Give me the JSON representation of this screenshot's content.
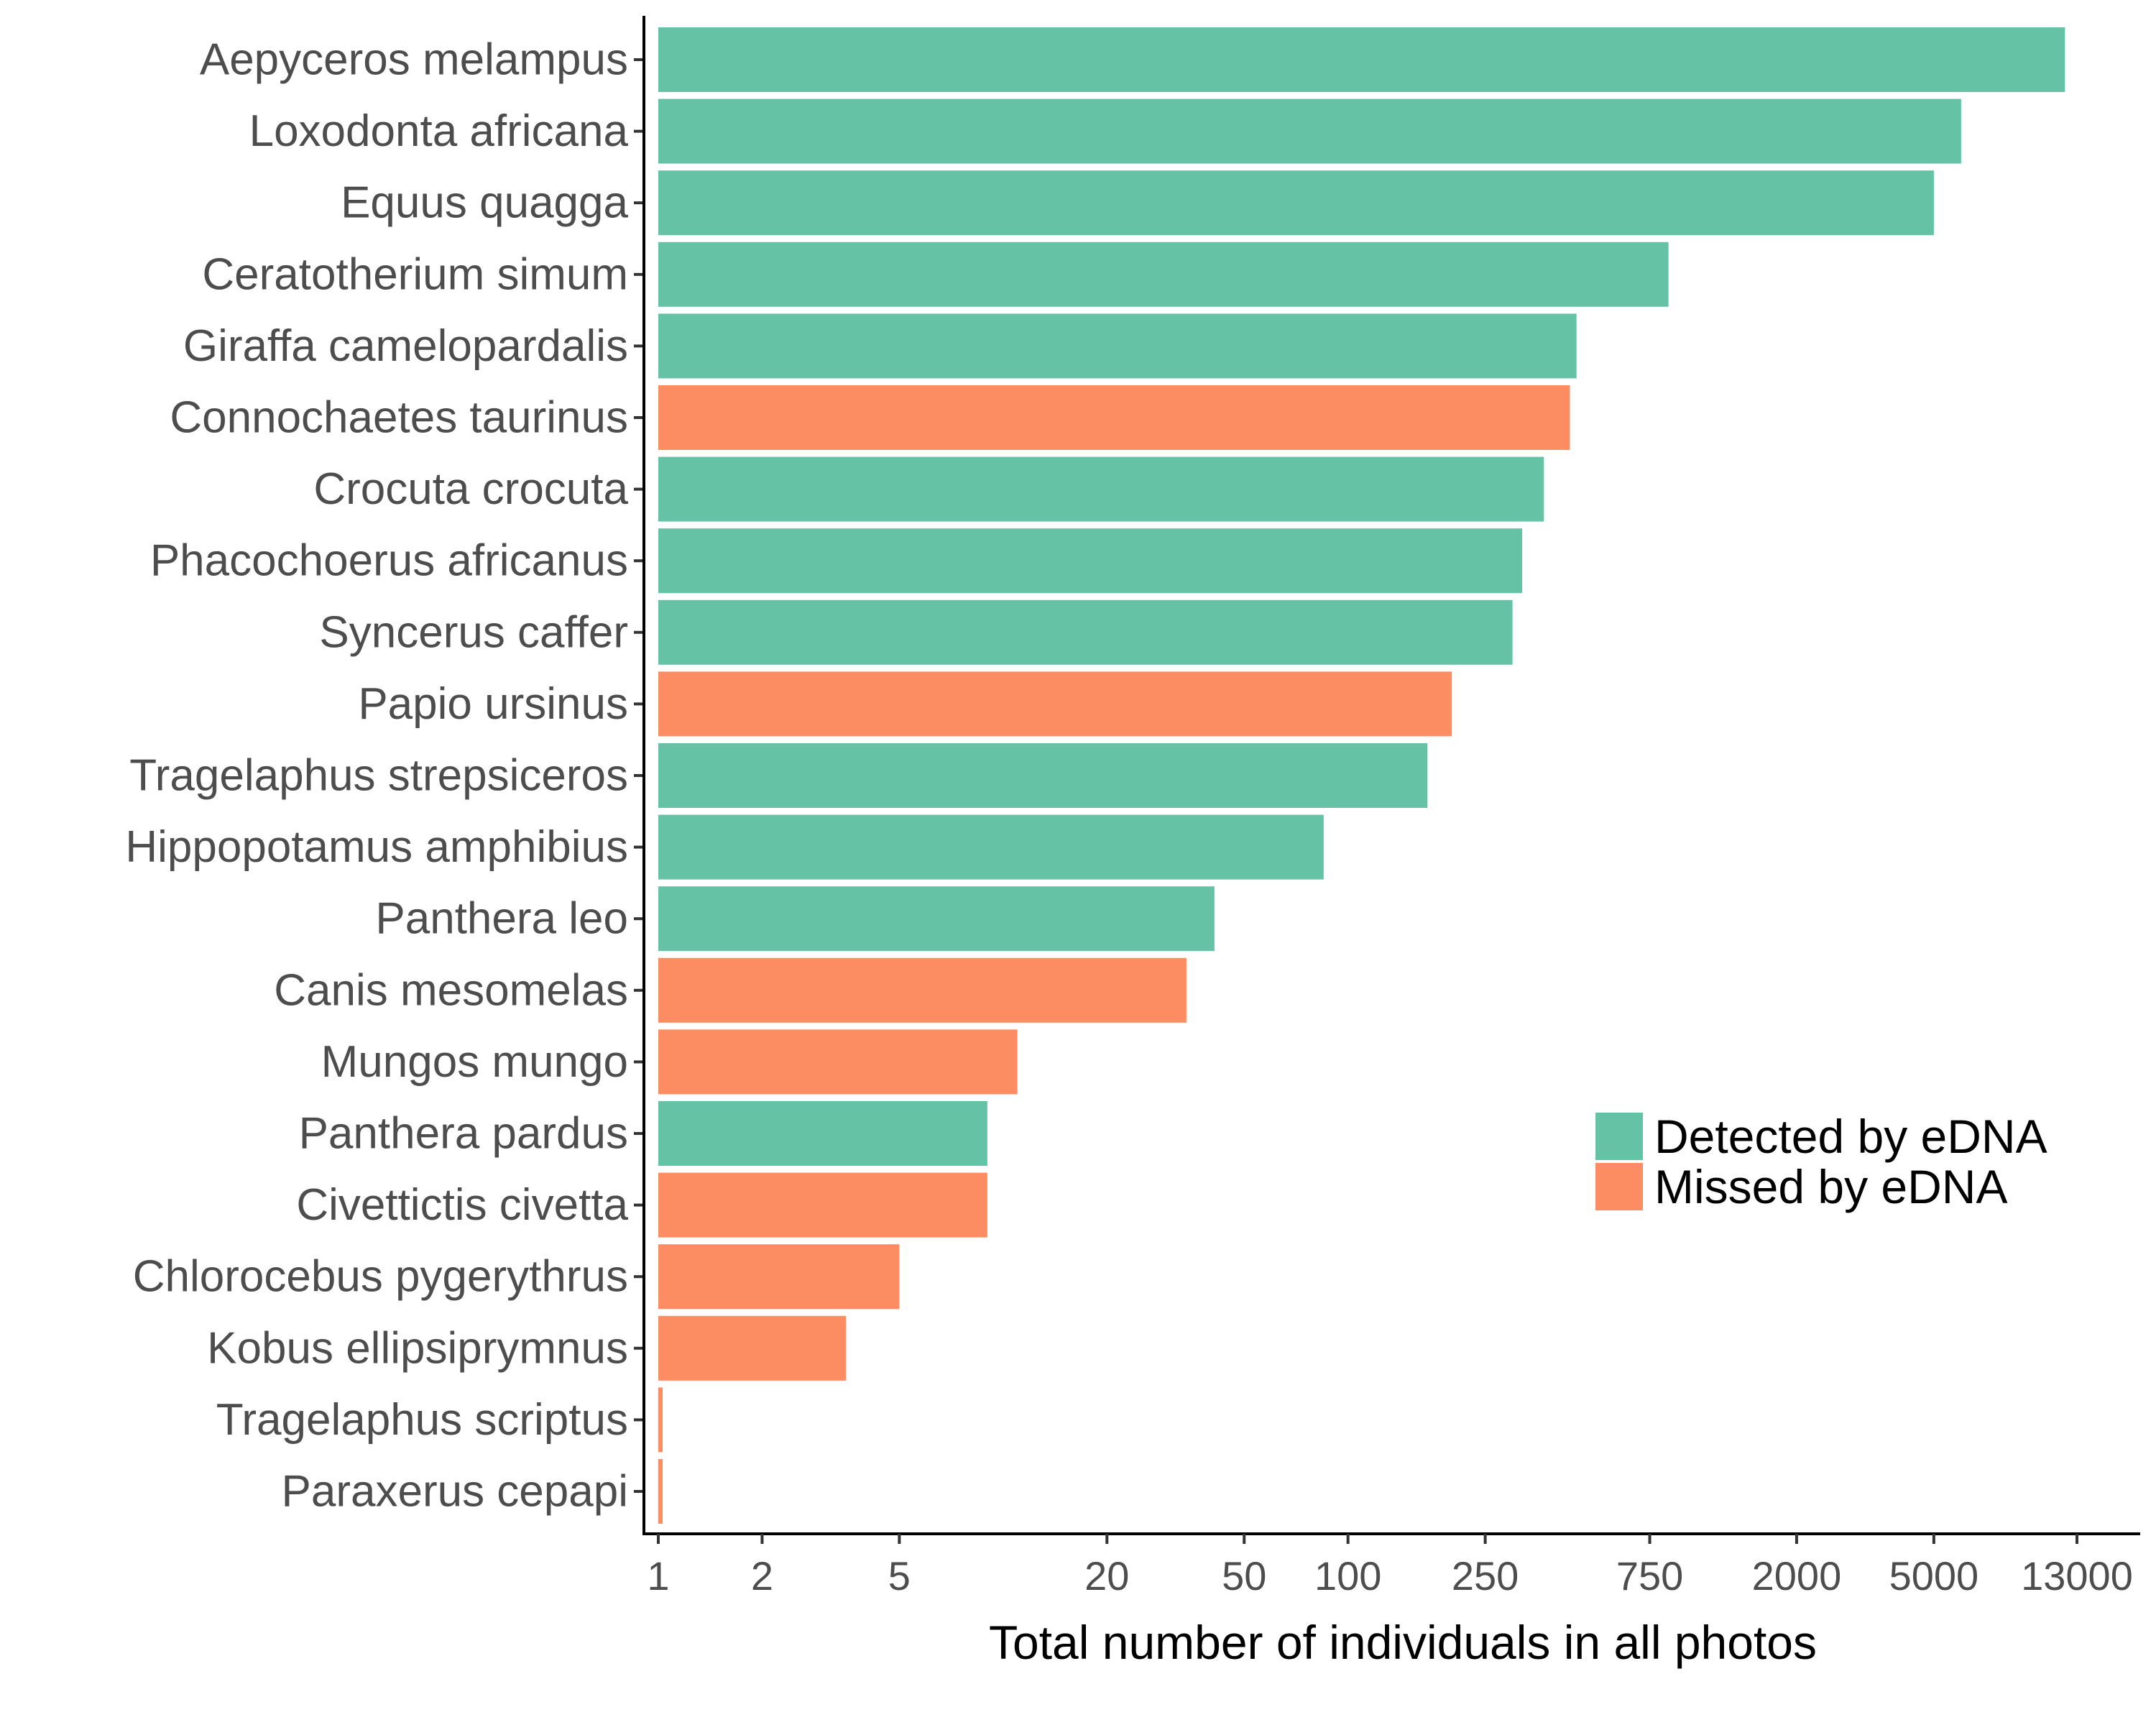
{
  "chart_data": {
    "type": "bar",
    "orientation": "horizontal",
    "categories": [
      "Aepyceros melampus",
      "Loxodonta africana",
      "Equus quagga",
      "Ceratotherium simum",
      "Giraffa camelopardalis",
      "Connochaetes taurinus",
      "Crocuta crocuta",
      "Phacochoerus africanus",
      "Syncerus caffer",
      "Papio ursinus",
      "Tragelaphus strepsiceros",
      "Hippopotamus amphibius",
      "Panthera leo",
      "Canis mesomelas",
      "Mungos mungo",
      "Panthera pardus",
      "Civettictis civetta",
      "Chlorocebus pygerythrus",
      "Kobus ellipsiprymnus",
      "Tragelaphus scriptus",
      "Paraxerus cepapi"
    ],
    "values": [
      12000,
      6000,
      5000,
      850,
      460,
      440,
      370,
      320,
      300,
      200,
      170,
      85,
      41,
      34,
      11,
      9,
      9,
      5,
      3.5,
      1,
      1
    ],
    "groups": [
      "Detected by eDNA",
      "Detected by eDNA",
      "Detected by eDNA",
      "Detected by eDNA",
      "Detected by eDNA",
      "Missed by eDNA",
      "Detected by eDNA",
      "Detected by eDNA",
      "Detected by eDNA",
      "Missed by eDNA",
      "Detected by eDNA",
      "Detected by eDNA",
      "Detected by eDNA",
      "Missed by eDNA",
      "Missed by eDNA",
      "Detected by eDNA",
      "Missed by eDNA",
      "Missed by eDNA",
      "Missed by eDNA",
      "Missed by eDNA",
      "Missed by eDNA"
    ],
    "legend": [
      {
        "name": "Detected by eDNA",
        "color": "#66c2a5"
      },
      {
        "name": "Missed by eDNA",
        "color": "#fc8d62"
      }
    ],
    "legend_position": "right-center",
    "xlabel": "Total number of individuals in all photos",
    "ylabel": "",
    "xscale": "log",
    "xticks": [
      1,
      2,
      5,
      20,
      50,
      100,
      250,
      750,
      2000,
      5000,
      13000
    ],
    "xtick_labels": [
      "1",
      "2",
      "5",
      "20",
      "50",
      "100",
      "250",
      "750",
      "2000",
      "5000",
      "13000"
    ],
    "xlim": [
      1,
      13000
    ],
    "grid": false
  }
}
